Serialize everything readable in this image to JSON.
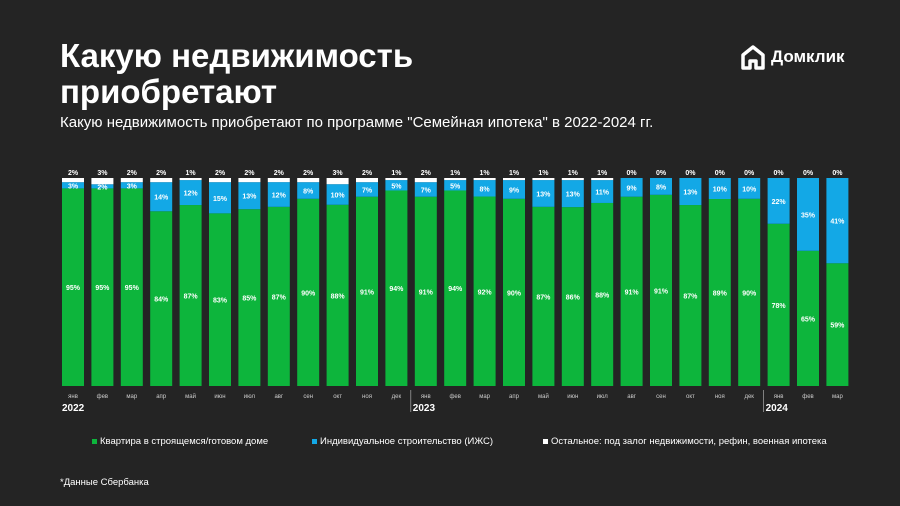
{
  "title": "Какую недвижимость приобретают",
  "subtitle": "Какую недвижимость приобретают по программе \"Семейная ипотека\" в 2022-2024 гг.",
  "logo": "Домклик",
  "note": "*Данные Сбербанка",
  "chart_data": {
    "type": "bar",
    "stacked": true,
    "unit": "%",
    "categories": [
      "янв",
      "фев",
      "мар",
      "апр",
      "май",
      "июн",
      "июл",
      "авг",
      "сен",
      "окт",
      "ноя",
      "дек",
      "янв",
      "фев",
      "мар",
      "апр",
      "май",
      "июн",
      "июл",
      "авг",
      "сен",
      "окт",
      "ноя",
      "дек",
      "янв",
      "фев",
      "мар"
    ],
    "years": [
      {
        "label": "2022",
        "start": 0
      },
      {
        "label": "2023",
        "start": 12
      },
      {
        "label": "2024",
        "start": 24
      }
    ],
    "ylim": [
      0,
      100
    ],
    "legend_position": "bottom",
    "series": [
      {
        "name": "Квартира в строящемся/готовом доме",
        "color": "#0db53c",
        "values": [
          95,
          95,
          95,
          84,
          87,
          83,
          85,
          87,
          90,
          88,
          91,
          94,
          91,
          94,
          92,
          90,
          87,
          86,
          88,
          91,
          91,
          87,
          89,
          90,
          78,
          65,
          59
        ]
      },
      {
        "name": "Индивидуальное строительство (ИЖС)",
        "color": "#13a8e6",
        "values": [
          3,
          2,
          3,
          14,
          12,
          15,
          13,
          12,
          8,
          10,
          7,
          5,
          7,
          5,
          8,
          9,
          13,
          13,
          11,
          9,
          8,
          13,
          10,
          10,
          22,
          35,
          41
        ]
      },
      {
        "name": "Остальное: под залог недвижимости, рефин, военная ипотека",
        "color": "#ffffff",
        "values": [
          2,
          3,
          2,
          2,
          1,
          2,
          2,
          2,
          2,
          3,
          2,
          1,
          2,
          1,
          1,
          1,
          1,
          1,
          1,
          0,
          0,
          0,
          0,
          0,
          0,
          0,
          0
        ]
      }
    ]
  }
}
